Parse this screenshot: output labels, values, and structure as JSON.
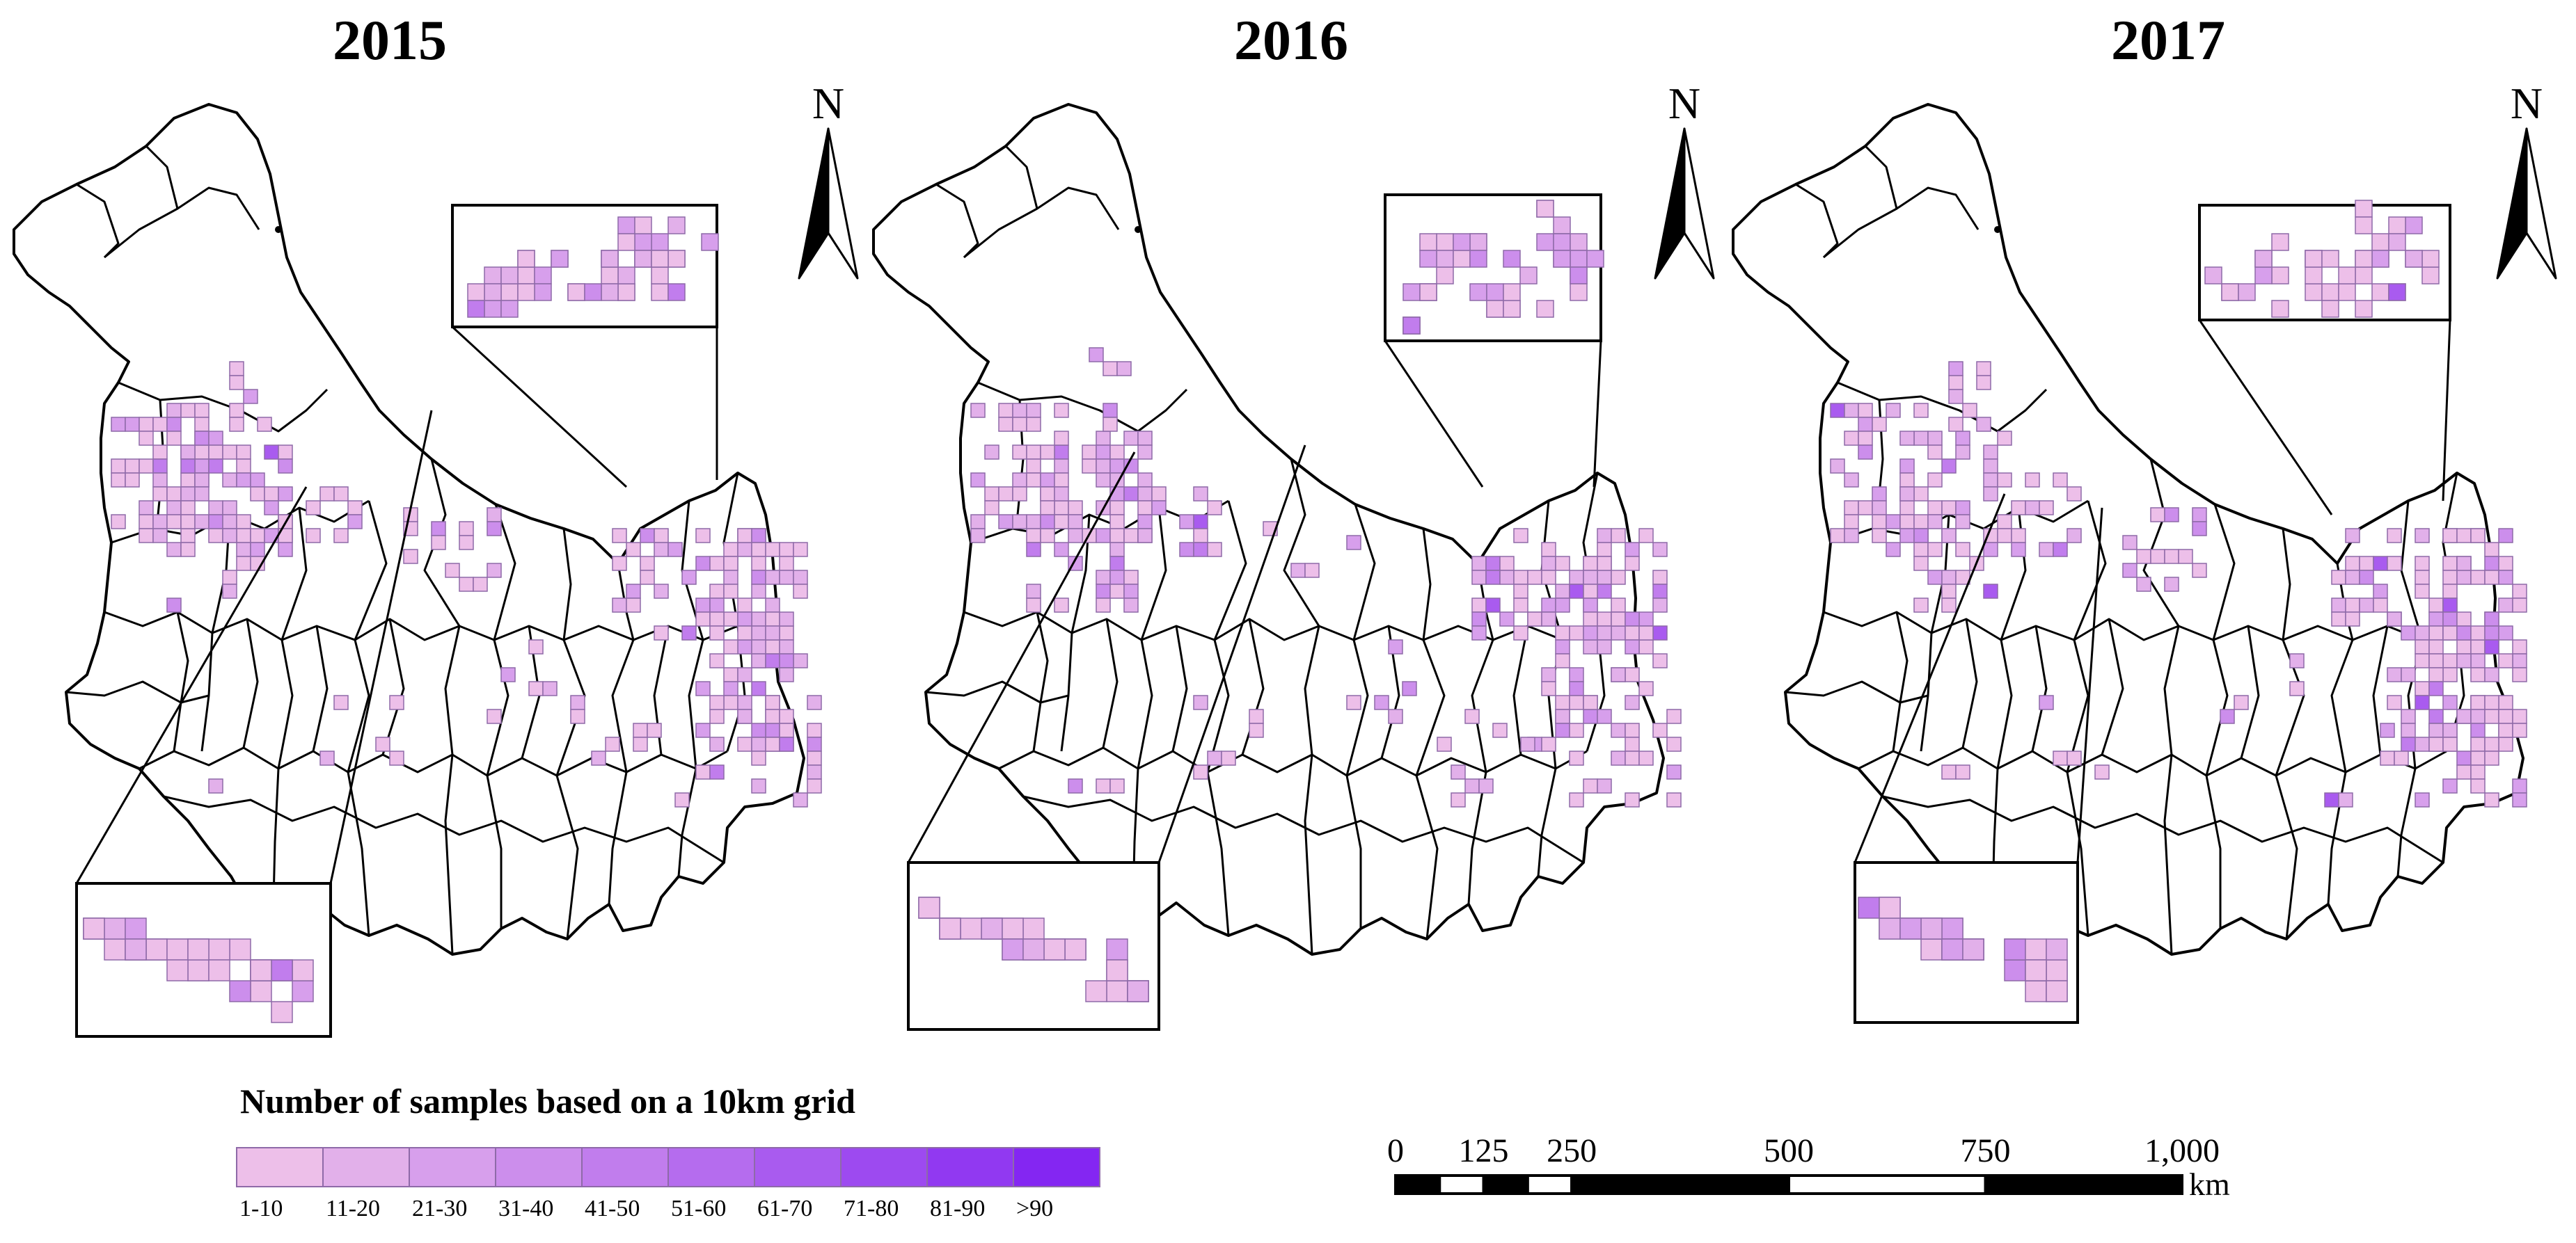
{
  "panels": [
    {
      "year": "2015",
      "north": "N"
    },
    {
      "year": "2016",
      "north": "N"
    },
    {
      "year": "2017",
      "north": "N"
    }
  ],
  "legend": {
    "title": "Number of samples based on a 10km grid",
    "classes": [
      {
        "label": "1-10",
        "color": "#edbfe9"
      },
      {
        "label": "11-20",
        "color": "#e2b0ea"
      },
      {
        "label": "21-30",
        "color": "#d79fec"
      },
      {
        "label": "31-40",
        "color": "#cc8eec"
      },
      {
        "label": "41-50",
        "color": "#c17ded"
      },
      {
        "label": "51-60",
        "color": "#b56cee"
      },
      {
        "label": "61-70",
        "color": "#a95bef"
      },
      {
        "label": "71-80",
        "color": "#9d4af0"
      },
      {
        "label": "81-90",
        "color": "#9139f1"
      },
      {
        "label": ">90",
        "color": "#8426f2"
      }
    ]
  },
  "scalebar": {
    "ticks": [
      "0",
      "125",
      "250",
      "500",
      "750",
      "1,000"
    ],
    "unit": "km"
  },
  "colors": {
    "boundary": "#000000",
    "grid_stroke": "#8e6aa8"
  }
}
